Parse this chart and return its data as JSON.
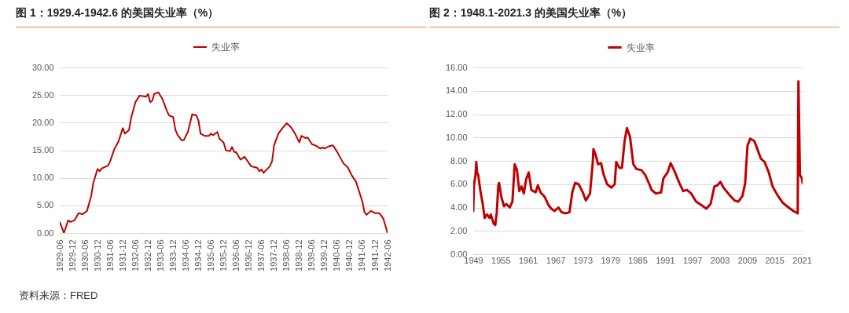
{
  "chart_data": [
    {
      "type": "line",
      "title": "图 1：1929.4-1942.6 的美国失业率（%）",
      "annotations": [
        "资料来源：FRED"
      ],
      "legend": "top",
      "grid": "y",
      "x": [
        "1929-06",
        "1929-08",
        "1929-10",
        "1929-11",
        "1930-01",
        "1930-03",
        "1930-05",
        "1930-07",
        "1930-09",
        "1930-10",
        "1930-12",
        "1931-01",
        "1931-02",
        "1931-05",
        "1931-06",
        "1931-08",
        "1931-10",
        "1931-12",
        "1932-01",
        "1932-03",
        "1932-04",
        "1932-06",
        "1932-08",
        "1932-11",
        "1932-12",
        "1933-01",
        "1933-02",
        "1933-03",
        "1933-05",
        "1933-07",
        "1933-09",
        "1933-10",
        "1933-12",
        "1934-01",
        "1934-02",
        "1934-04",
        "1934-05",
        "1934-07",
        "1934-09",
        "1934-11",
        "1934-12",
        "1935-01",
        "1935-03",
        "1935-05",
        "1935-06",
        "1935-07",
        "1935-09",
        "1935-10",
        "1935-12",
        "1936-01",
        "1936-03",
        "1936-04",
        "1936-05",
        "1936-06",
        "1936-08",
        "1936-10",
        "1937-01",
        "1937-04",
        "1937-05",
        "1937-06",
        "1937-07",
        "1937-10",
        "1937-11",
        "1937-12",
        "1938-02",
        "1938-04",
        "1938-06",
        "1938-08",
        "1938-10",
        "1938-12",
        "1939-01",
        "1939-03",
        "1939-04",
        "1939-06",
        "1939-08",
        "1939-10",
        "1939-11",
        "1939-12",
        "1940-02",
        "1940-04",
        "1940-06",
        "1940-09",
        "1940-11",
        "1941-01",
        "1941-03",
        "1941-06",
        "1941-07",
        "1941-08",
        "1941-10",
        "1941-12",
        "1942-02",
        "1942-04",
        "1942-06"
      ],
      "series": [
        {
          "name": "失业率",
          "color": "#c00000",
          "values": [
            2.0,
            0.0,
            2.3,
            2.0,
            2.3,
            3.6,
            3.4,
            4.0,
            6.8,
            9.1,
            11.6,
            11.2,
            11.7,
            12.2,
            13.0,
            15.2,
            16.6,
            19.0,
            18.0,
            18.7,
            20.9,
            23.7,
            24.9,
            24.7,
            25.2,
            23.7,
            24.0,
            25.2,
            25.5,
            24.2,
            22.1,
            21.3,
            21.0,
            18.7,
            17.8,
            16.8,
            16.8,
            18.3,
            21.5,
            21.3,
            20.4,
            18.0,
            17.6,
            17.6,
            18.0,
            17.7,
            18.3,
            17.1,
            16.4,
            15.0,
            14.8,
            15.6,
            14.7,
            14.6,
            13.3,
            13.8,
            12.1,
            11.8,
            11.2,
            11.5,
            10.9,
            12.1,
            13.0,
            15.9,
            18.0,
            19.0,
            19.9,
            19.2,
            18.0,
            16.4,
            17.6,
            17.2,
            17.3,
            16.1,
            15.8,
            15.3,
            15.5,
            15.3,
            15.7,
            15.9,
            14.7,
            12.6,
            11.9,
            10.4,
            9.3,
            5.7,
            3.8,
            3.3,
            4.0,
            3.6,
            3.6,
            2.6,
            0.0
          ]
        }
      ],
      "xlim": [
        "1929-06",
        "1942-06"
      ],
      "xticks": [
        "1929-06",
        "1929-12",
        "1930-06",
        "1930-12",
        "1931-06",
        "1931-12",
        "1932-06",
        "1932-12",
        "1933-06",
        "1933-12",
        "1934-06",
        "1934-12",
        "1935-06",
        "1935-12",
        "1936-06",
        "1936-12",
        "1937-06",
        "1937-12",
        "1938-06",
        "1938-12",
        "1939-06",
        "1939-12",
        "1940-06",
        "1940-12",
        "1941-06",
        "1941-12",
        "1942-06"
      ],
      "ylim": [
        0,
        30
      ],
      "yticks": [
        {
          "value": 0,
          "label": "0.00"
        },
        {
          "value": 5,
          "label": "5.00"
        },
        {
          "value": 10,
          "label": "10.00"
        },
        {
          "value": 15,
          "label": "15.00"
        },
        {
          "value": 20,
          "label": "20.00"
        },
        {
          "value": 25,
          "label": "25.00"
        },
        {
          "value": 30,
          "label": "30.00"
        }
      ]
    },
    {
      "type": "line",
      "title": "图 2：1948.1-2021.3 的美国失业率（%）",
      "legend": "top",
      "grid": "y",
      "x": [
        "1949-01",
        "1949-03",
        "1949-07",
        "1949-09",
        "1949-11",
        "1950-02",
        "1950-08",
        "1951-02",
        "1951-07",
        "1952-01",
        "1952-08",
        "1952-11",
        "1953-07",
        "1953-11",
        "1954-03",
        "1954-07",
        "1954-09",
        "1955-03",
        "1955-10",
        "1956-04",
        "1957-01",
        "1957-08",
        "1958-02",
        "1958-08",
        "1959-02",
        "1959-08",
        "1960-02",
        "1960-08",
        "1961-03",
        "1961-10",
        "1962-09",
        "1963-03",
        "1963-10",
        "1964-09",
        "1965-07",
        "1966-02",
        "1966-11",
        "1967-09",
        "1968-05",
        "1969-04",
        "1970-02",
        "1970-10",
        "1971-05",
        "1972-02",
        "1973-01",
        "1973-09",
        "1974-08",
        "1975-03",
        "1975-05",
        "1975-11",
        "1976-05",
        "1977-01",
        "1977-08",
        "1978-05",
        "1979-04",
        "1980-01",
        "1980-05",
        "1981-01",
        "1981-08",
        "1982-03",
        "1982-09",
        "1983-05",
        "1984-02",
        "1984-10",
        "1985-11",
        "1986-09",
        "1987-08",
        "1988-02",
        "1989-01",
        "1990-03",
        "1990-09",
        "1991-08",
        "1992-04",
        "1993-01",
        "1994-03",
        "1995-01",
        "1995-11",
        "1996-10",
        "1997-11",
        "1999-01",
        "2000-02",
        "2001-01",
        "2001-11",
        "2002-07",
        "2003-03",
        "2003-11",
        "2005-02",
        "2006-04",
        "2007-02",
        "2008-01",
        "2008-08",
        "2009-02",
        "2009-09",
        "2010-08",
        "2011-03",
        "2012-01",
        "2012-11",
        "2013-10",
        "2014-08",
        "2015-10",
        "2016-11",
        "2018-02",
        "2019-03",
        "2020-02",
        "2020-04",
        "2020-08",
        "2021-01",
        "2021-03"
      ],
      "series": [
        {
          "name": "失业率",
          "color": "#c00000",
          "values": [
            3.7,
            5.9,
            6.8,
            7.9,
            7.0,
            6.8,
            5.4,
            4.3,
            3.1,
            3.4,
            3.1,
            3.4,
            2.6,
            2.5,
            3.6,
            5.9,
            6.1,
            4.9,
            4.1,
            4.3,
            4.0,
            4.5,
            7.7,
            7.2,
            5.4,
            5.8,
            5.2,
            6.4,
            7.0,
            5.5,
            5.3,
            5.9,
            5.3,
            4.9,
            4.2,
            3.9,
            3.7,
            4.0,
            3.6,
            3.5,
            3.6,
            5.4,
            6.1,
            6.0,
            5.3,
            4.6,
            5.2,
            7.7,
            9.0,
            8.5,
            7.7,
            7.8,
            6.8,
            6.0,
            5.7,
            6.0,
            7.9,
            7.4,
            7.4,
            9.7,
            10.8,
            10.1,
            7.7,
            7.3,
            7.2,
            6.8,
            6.0,
            5.5,
            5.2,
            5.3,
            6.5,
            7.0,
            7.8,
            7.2,
            6.1,
            5.4,
            5.5,
            5.2,
            4.5,
            4.2,
            3.9,
            4.3,
            5.8,
            5.9,
            6.2,
            5.7,
            5.1,
            4.6,
            4.5,
            5.0,
            6.1,
            9.3,
            9.9,
            9.7,
            9.1,
            8.2,
            7.9,
            7.0,
            5.8,
            5.0,
            4.4,
            4.0,
            3.7,
            3.5,
            14.8,
            6.8,
            6.5,
            6.1
          ]
        }
      ],
      "xlim": [
        "1949-01",
        "2021-03"
      ],
      "xticks": [
        "1949",
        "1955",
        "1961",
        "1967",
        "1973",
        "1979",
        "1985",
        "1991",
        "1997",
        "2003",
        "2009",
        "2015",
        "2021"
      ],
      "ylim": [
        0,
        16
      ],
      "yticks": [
        {
          "value": 0,
          "label": "0.00"
        },
        {
          "value": 2,
          "label": "2.00"
        },
        {
          "value": 4,
          "label": "4.00"
        },
        {
          "value": 6,
          "label": "6.00"
        },
        {
          "value": 8,
          "label": "8.00"
        },
        {
          "value": 10,
          "label": "10.00"
        },
        {
          "value": 12,
          "label": "12.00"
        },
        {
          "value": 14,
          "label": "14.00"
        },
        {
          "value": 16,
          "label": "16.00"
        }
      ]
    }
  ]
}
